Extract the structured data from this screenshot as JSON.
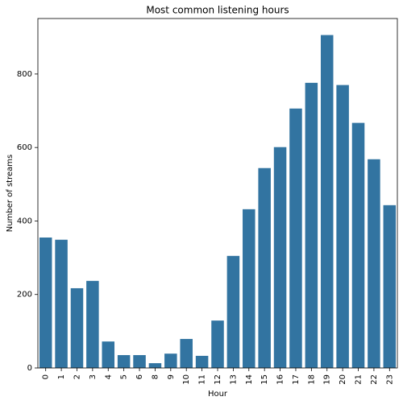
{
  "chart_data": {
    "type": "bar",
    "title": "Most common listening hours",
    "x_label": "Hour",
    "y_label": "Number of streams",
    "categories": [
      "0",
      "1",
      "2",
      "3",
      "4",
      "5",
      "6",
      "8",
      "9",
      "10",
      "11",
      "12",
      "13",
      "14",
      "15",
      "16",
      "17",
      "18",
      "19",
      "20",
      "21",
      "22",
      "23"
    ],
    "values": [
      355,
      349,
      217,
      237,
      72,
      35,
      35,
      13,
      39,
      79,
      33,
      129,
      305,
      432,
      544,
      601,
      706,
      776,
      906,
      770,
      667,
      568,
      443
    ],
    "color": "#3274a1",
    "ylim": [
      0,
      951
    ],
    "yticks": [
      0,
      200,
      400,
      600,
      800
    ],
    "grid": false
  }
}
